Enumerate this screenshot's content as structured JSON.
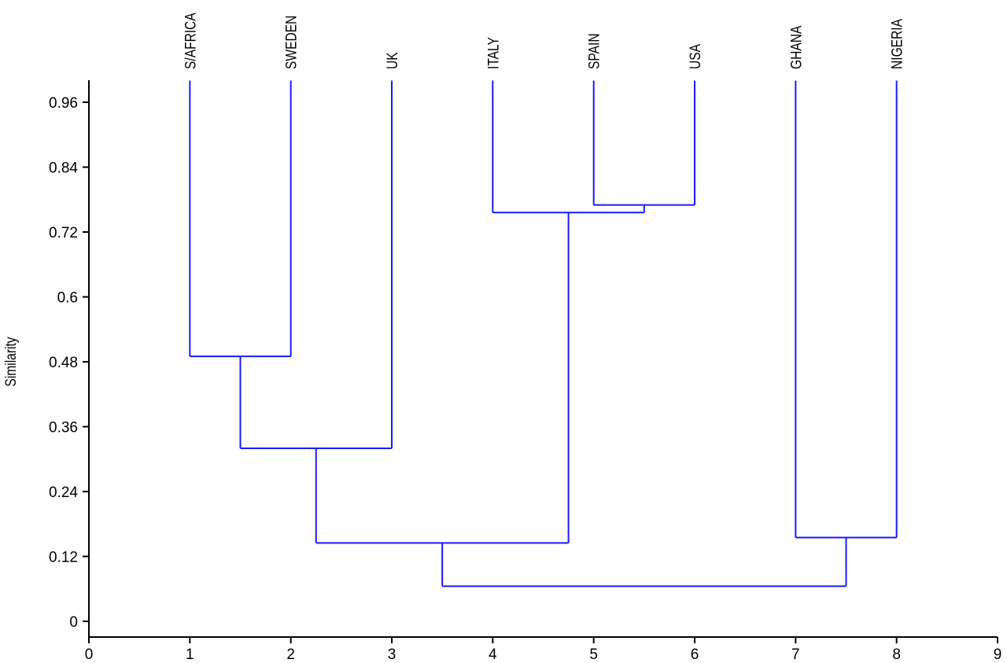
{
  "chart_data": {
    "type": "dendrogram",
    "ylabel": "Similarity",
    "xlim": [
      0,
      9
    ],
    "ylim": [
      -0.03,
      1.0
    ],
    "x_ticks": [
      "0",
      "1",
      "2",
      "3",
      "4",
      "5",
      "6",
      "7",
      "8",
      "9"
    ],
    "y_ticks": [
      "0",
      "0.12",
      "0.24",
      "0.36",
      "0.48",
      "0.6",
      "0.72",
      "0.84",
      "0.96"
    ],
    "y_tick_values": [
      0,
      0.12,
      0.24,
      0.36,
      0.48,
      0.6,
      0.72,
      0.84,
      0.96
    ],
    "line_color": "#1a1aff",
    "leaves": [
      {
        "label": "S/AFRICA",
        "x": 1
      },
      {
        "label": "SWEDEN",
        "x": 2
      },
      {
        "label": "UK",
        "x": 3
      },
      {
        "label": "ITALY",
        "x": 4
      },
      {
        "label": "SPAIN",
        "x": 5
      },
      {
        "label": "USA",
        "x": 6
      },
      {
        "label": "GHANA",
        "x": 7
      },
      {
        "label": "NIGERIA",
        "x": 8
      }
    ],
    "merges": [
      {
        "left": "S/AFRICA",
        "right": "SWEDEN",
        "similarity": 0.49
      },
      {
        "left": "S/AFRICA+SWEDEN",
        "right": "UK",
        "similarity": 0.32
      },
      {
        "left": "SPAIN",
        "right": "USA",
        "similarity": 0.77
      },
      {
        "left": "ITALY",
        "right": "SPAIN+USA",
        "similarity": 0.756
      },
      {
        "left": "S/AFRICA+SWEDEN+UK",
        "right": "ITALY+SPAIN+USA",
        "similarity": 0.145
      },
      {
        "left": "GHANA",
        "right": "NIGERIA",
        "similarity": 0.155
      },
      {
        "left": "S/AFRICA+SWEDEN+UK+ITALY+SPAIN+USA",
        "right": "GHANA+NIGERIA",
        "similarity": 0.065
      }
    ],
    "leaf_top": 1.0
  }
}
